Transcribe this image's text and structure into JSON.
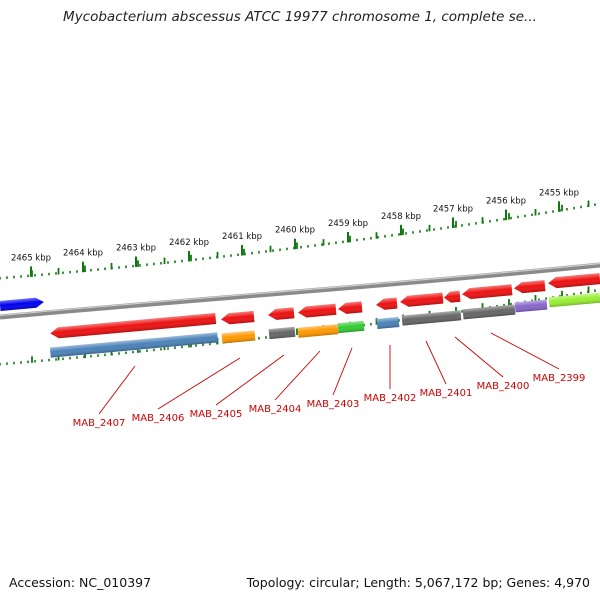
{
  "title": "Mycobacterium abscessus ATCC 19977 chromosome 1, complete se...",
  "kbp_labels": [
    "2465 kbp",
    "2464 kbp",
    "2463 kbp",
    "2462 kbp",
    "2461 kbp",
    "2460 kbp",
    "2459 kbp",
    "2458 kbp",
    "2457 kbp",
    "2456 kbp",
    "2455 kbp"
  ],
  "gene_labels": [
    "MAB_2407",
    "MAB_2406",
    "MAB_2405",
    "MAB_2404",
    "MAB_2403",
    "MAB_2402",
    "MAB_2401",
    "MAB_2400",
    "MAB_2399"
  ],
  "footer": {
    "accession": "Accession: NC_010397",
    "topology": "Topology: circular; Length: 5,067,172 bp; Genes: 4,970"
  },
  "colors": {
    "gene_red": "#ee1111",
    "gene_blue": "#0000ee",
    "steelblue": "#4a82b8",
    "orange": "#ff9900",
    "green": "#33cc33",
    "gray": "#666666",
    "purple": "#8866cc",
    "lime": "#99ee33",
    "tick_green": "#117711",
    "label_red": "#cc0000"
  }
}
